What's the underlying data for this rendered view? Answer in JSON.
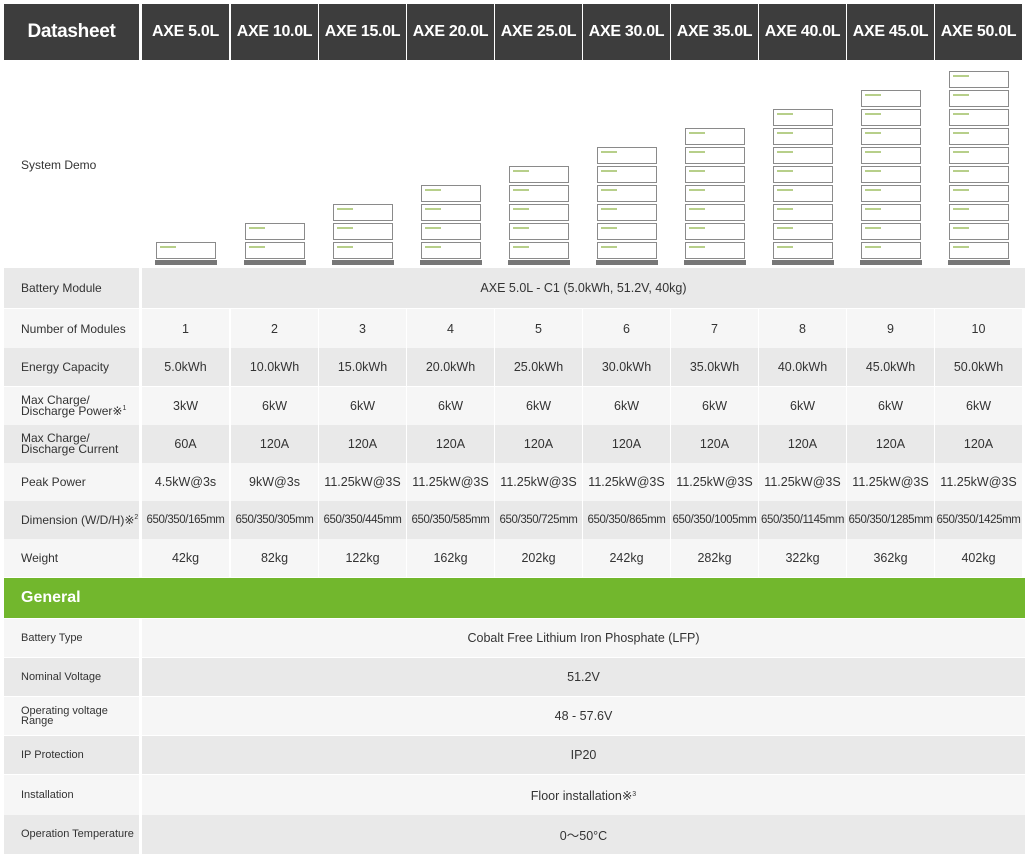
{
  "header": {
    "title": "Datasheet",
    "models": [
      "AXE 5.0L",
      "AXE 10.0L",
      "AXE 15.0L",
      "AXE 20.0L",
      "AXE 25.0L",
      "AXE 30.0L",
      "AXE 35.0L",
      "AXE 40.0L",
      "AXE 45.0L",
      "AXE 50.0L"
    ]
  },
  "rows": {
    "system_demo": {
      "label": "System Demo",
      "modules": [
        1,
        2,
        3,
        4,
        5,
        6,
        7,
        8,
        9,
        10
      ]
    },
    "battery_module": {
      "label": "Battery Module",
      "value": "AXE 5.0L - C1 (5.0kWh, 51.2V, 40kg)"
    },
    "num_modules": {
      "label": "Number of Modules",
      "values": [
        "1",
        "2",
        "3",
        "4",
        "5",
        "6",
        "7",
        "8",
        "9",
        "10"
      ]
    },
    "energy": {
      "label": "Energy Capacity",
      "values": [
        "5.0kWh",
        "10.0kWh",
        "15.0kWh",
        "20.0kWh",
        "25.0kWh",
        "30.0kWh",
        "35.0kWh",
        "40.0kWh",
        "45.0kWh",
        "50.0kWh"
      ]
    },
    "power": {
      "label_line1": "Max Charge/",
      "label_line2": "Discharge Power※",
      "sup": "1",
      "values": [
        "3kW",
        "6kW",
        "6kW",
        "6kW",
        "6kW",
        "6kW",
        "6kW",
        "6kW",
        "6kW",
        "6kW"
      ]
    },
    "current": {
      "label_line1": "Max Charge/",
      "label_line2": "Discharge Current",
      "values": [
        "60A",
        "120A",
        "120A",
        "120A",
        "120A",
        "120A",
        "120A",
        "120A",
        "120A",
        "120A"
      ]
    },
    "peak": {
      "label": "Peak Power",
      "values": [
        "4.5kW@3s",
        "9kW@3s",
        "11.25kW@3S",
        "11.25kW@3S",
        "11.25kW@3S",
        "11.25kW@3S",
        "11.25kW@3S",
        "11.25kW@3S",
        "11.25kW@3S",
        "11.25kW@3S"
      ]
    },
    "dimension": {
      "label": "Dimension (W/D/H)※",
      "sup": "2",
      "values": [
        "650/350/165mm",
        "650/350/305mm",
        "650/350/445mm",
        "650/350/585mm",
        "650/350/725mm",
        "650/350/865mm",
        "650/350/1005mm",
        "650/350/1145mm",
        "650/350/1285mm",
        "650/350/1425mm"
      ]
    },
    "weight": {
      "label": "Weight",
      "values": [
        "42kg",
        "82kg",
        "122kg",
        "162kg",
        "202kg",
        "242kg",
        "282kg",
        "322kg",
        "362kg",
        "402kg"
      ]
    }
  },
  "general": {
    "title": "General",
    "battery_type": {
      "label": "Battery Type",
      "value": "Cobalt Free Lithium Iron Phosphate (LFP)"
    },
    "nominal_voltage": {
      "label": "Nominal Voltage",
      "value": "51.2V"
    },
    "operating_voltage": {
      "label_line1": "Operating voltage",
      "label_line2": "Range",
      "value": "48 - 57.6V"
    },
    "ip": {
      "label": "IP Protection",
      "value": "IP20"
    },
    "installation": {
      "label": "Installation",
      "value": "Floor installation※",
      "sup": "3"
    },
    "temperature": {
      "label": "Operation Temperature",
      "value": "0～50°C"
    }
  }
}
